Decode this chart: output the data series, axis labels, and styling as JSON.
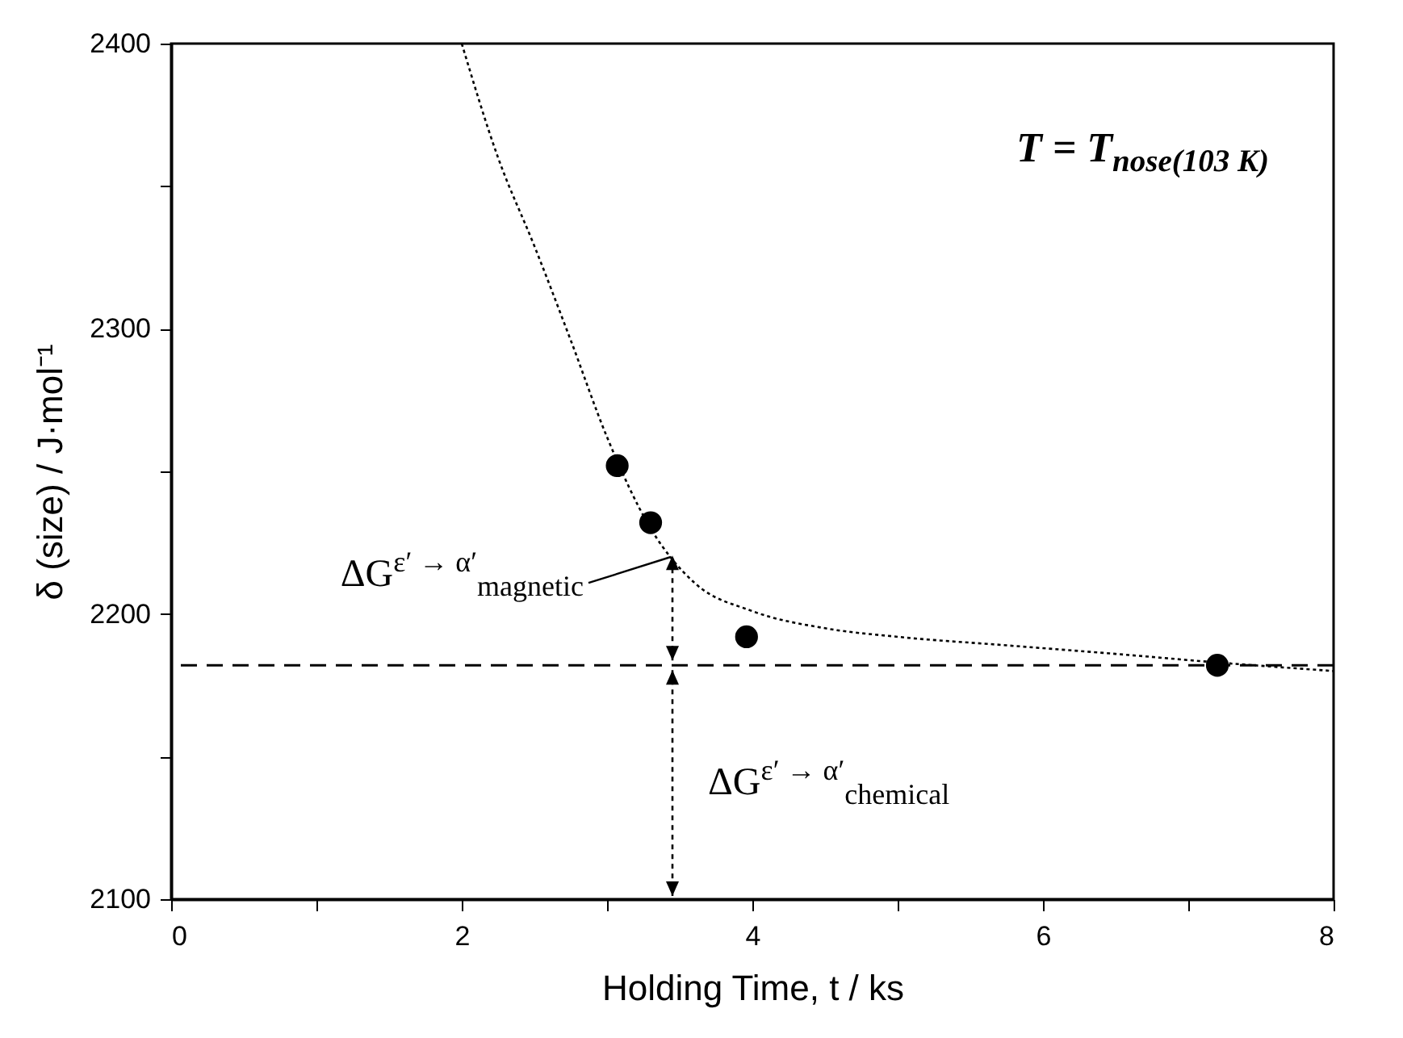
{
  "chart_data": {
    "type": "scatter",
    "xlabel": "Holding Time,  t / ks",
    "ylabel": "δ (size) / J·mol⁻¹",
    "xlim": [
      0,
      8
    ],
    "ylim": [
      2100,
      2400
    ],
    "xticks": [
      0,
      {
        "value": 1,
        "label": null
      },
      2,
      {
        "value": 3,
        "label": null
      },
      4,
      {
        "value": 5,
        "label": null
      },
      6,
      {
        "value": 7,
        "label": null
      },
      8
    ],
    "yticks": [
      2100,
      {
        "value": 2150,
        "label": null
      },
      2200,
      {
        "value": 2250,
        "label": null
      },
      2300,
      {
        "value": 2350,
        "label": null
      },
      2400
    ],
    "grid": false,
    "series": [
      {
        "type": "scatter",
        "color": "#000000",
        "marker": "circle",
        "x": [
          3.07,
          3.3,
          3.96,
          7.2
        ],
        "values": [
          2252,
          2232,
          2192,
          2182
        ]
      },
      {
        "type": "line",
        "color": "#000000",
        "line_style": "dotted",
        "marker": "none",
        "x": [
          2.0,
          2.25,
          2.5,
          2.75,
          3.0,
          3.3,
          3.6,
          4.0,
          4.5,
          5.0,
          5.75,
          6.5,
          7.2,
          8.0
        ],
        "values": [
          2400,
          2360,
          2329,
          2296,
          2262,
          2230,
          2211,
          2201,
          2195,
          2192,
          2189,
          2186,
          2183,
          2180
        ]
      }
    ],
    "ref_lines": [
      {
        "axis": "y",
        "value": 2182,
        "color": "#000000",
        "line_style": "dashed"
      }
    ],
    "annotations": [
      "T = T$_{nose(103 K)}$",
      {
        "text": "ΔG$^{ε′ → α′}$$_{magnetic}$",
        "x": 3.45,
        "y": 2220
      },
      "ΔG$^{ε′ → α′}$$_{chemical}$"
    ]
  }
}
